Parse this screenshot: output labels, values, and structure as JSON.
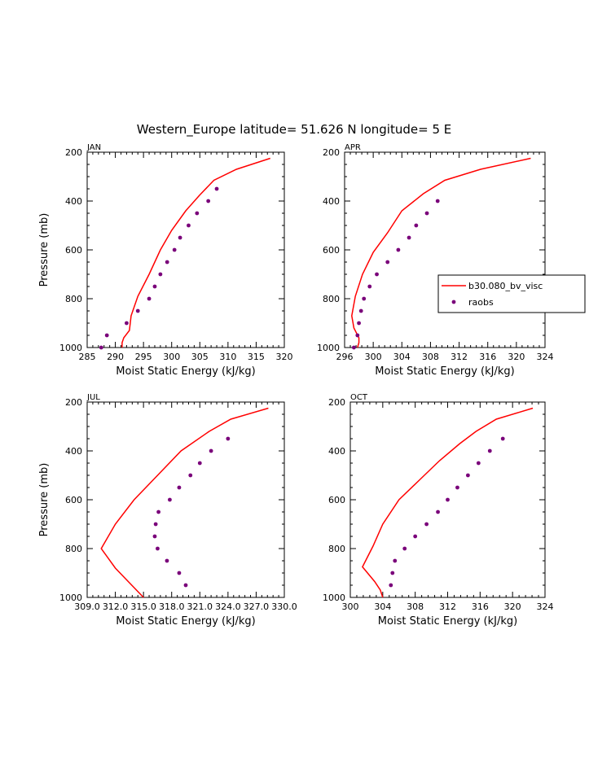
{
  "figure": {
    "title": "Western_Europe  latitude= 51.626 N longitude= 5 E"
  },
  "colors": {
    "model": "#ff0000",
    "obs": "#7a007a",
    "axis": "#000000"
  },
  "legend": {
    "entries": [
      "b30.080_bv_visc",
      "raobs"
    ]
  },
  "chart_data": [
    {
      "type": "line",
      "panel": "JAN",
      "xlabel": "Moist Static Energy (kJ/kg)",
      "ylabel": "Pressure (mb)",
      "xlim": [
        285,
        320
      ],
      "ylim": [
        1000,
        200
      ],
      "xticks": [
        285,
        290,
        295,
        300,
        305,
        310,
        315,
        320
      ],
      "xticklabels": [
        "285",
        "290",
        "295",
        "300",
        "305",
        "310",
        "315",
        "320"
      ],
      "yticks": [
        200,
        400,
        600,
        800,
        1000
      ],
      "yticklabels": [
        "200",
        "400",
        "600",
        "800",
        "1000"
      ],
      "series": [
        {
          "name": "b30.080_bv_visc",
          "style": "line",
          "x": [
            317.5,
            311.5,
            307.5,
            305,
            302.5,
            300,
            298,
            296,
            294,
            292.8,
            292.5,
            291.5,
            291.2,
            291.2
          ],
          "y": [
            225,
            270,
            315,
            375,
            440,
            520,
            600,
            700,
            790,
            870,
            930,
            960,
            980,
            1000
          ]
        },
        {
          "name": "raobs",
          "style": "marker",
          "x": [
            308,
            306.5,
            304.5,
            303,
            301.5,
            300.5,
            299.2,
            298,
            297,
            296,
            294,
            292,
            288.5,
            287.5
          ],
          "y": [
            350,
            400,
            450,
            500,
            550,
            600,
            650,
            700,
            750,
            800,
            850,
            900,
            950,
            1000
          ]
        }
      ]
    },
    {
      "type": "line",
      "panel": "APR",
      "xlabel": "Moist Static Energy (kJ/kg)",
      "ylabel": "",
      "xlim": [
        296,
        324
      ],
      "ylim": [
        1000,
        200
      ],
      "xticks": [
        296,
        300,
        304,
        308,
        312,
        316,
        320,
        324
      ],
      "xticklabels": [
        "296",
        "300",
        "304",
        "308",
        "312",
        "316",
        "320",
        "324"
      ],
      "yticks": [
        200,
        400,
        600,
        800,
        1000
      ],
      "yticklabels": [
        "200",
        "400",
        "600",
        "800",
        "1000"
      ],
      "series": [
        {
          "name": "b30.080_bv_visc",
          "style": "line",
          "x": [
            322,
            315,
            310,
            307,
            304,
            302,
            300,
            298.5,
            297.5,
            297,
            297.3,
            298,
            298,
            297.8
          ],
          "y": [
            225,
            270,
            315,
            370,
            440,
            530,
            610,
            700,
            790,
            870,
            920,
            960,
            980,
            1000
          ]
        },
        {
          "name": "raobs",
          "style": "marker",
          "x": [
            309,
            307.5,
            306,
            305,
            303.5,
            302,
            300.5,
            299.5,
            298.7,
            298.3,
            298,
            297.8,
            297.3
          ],
          "y": [
            400,
            450,
            500,
            550,
            600,
            650,
            700,
            750,
            800,
            850,
            900,
            950,
            1000
          ]
        }
      ]
    },
    {
      "type": "line",
      "panel": "JUL",
      "xlabel": "Moist Static Energy (kJ/kg)",
      "ylabel": "Pressure (mb)",
      "xlim": [
        309.0,
        330.0
      ],
      "ylim": [
        1000,
        200
      ],
      "xticks": [
        309.0,
        312.0,
        315.0,
        318.0,
        321.0,
        324.0,
        327.0,
        330.0
      ],
      "xticklabels": [
        "309.0",
        "312.0",
        "315.0",
        "318.0",
        "321.0",
        "324.0",
        "327.0",
        "330.0"
      ],
      "yticks": [
        200,
        400,
        600,
        800,
        1000
      ],
      "yticklabels": [
        "200",
        "400",
        "600",
        "800",
        "1000"
      ],
      "series": [
        {
          "name": "b30.080_bv_visc",
          "style": "line",
          "x": [
            328.3,
            324.3,
            322,
            319,
            316.5,
            314,
            312,
            310.5,
            312,
            313.5,
            314.5,
            315
          ],
          "y": [
            225,
            270,
            320,
            400,
            500,
            600,
            700,
            800,
            880,
            940,
            980,
            1000
          ]
        },
        {
          "name": "raobs",
          "style": "marker",
          "x": [
            324,
            322.2,
            321,
            320,
            318.8,
            317.8,
            316.6,
            316.3,
            316.2,
            316.5,
            317.5,
            318.8,
            319.5
          ],
          "y": [
            350,
            400,
            450,
            500,
            550,
            600,
            650,
            700,
            750,
            800,
            850,
            900,
            950
          ]
        }
      ]
    },
    {
      "type": "line",
      "panel": "OCT",
      "xlabel": "Moist Static Energy (kJ/kg)",
      "ylabel": "",
      "xlim": [
        300,
        324
      ],
      "ylim": [
        1000,
        200
      ],
      "xticks": [
        300,
        304,
        308,
        312,
        316,
        320,
        324
      ],
      "xticklabels": [
        "300",
        "304",
        "308",
        "312",
        "316",
        "320",
        "324"
      ],
      "yticks": [
        200,
        400,
        600,
        800,
        1000
      ],
      "yticklabels": [
        "200",
        "400",
        "600",
        "800",
        "1000"
      ],
      "series": [
        {
          "name": "b30.080_bv_visc",
          "style": "line",
          "x": [
            322.5,
            318,
            315.5,
            313.5,
            311,
            308.5,
            306,
            304,
            302.8,
            301.5,
            303,
            303.7,
            304
          ],
          "y": [
            225,
            270,
            320,
            370,
            440,
            520,
            600,
            700,
            790,
            875,
            935,
            970,
            1000
          ]
        },
        {
          "name": "raobs",
          "style": "marker",
          "x": [
            318.8,
            317.2,
            315.8,
            314.5,
            313.2,
            312,
            310.8,
            309.4,
            308,
            306.7,
            305.5,
            305.2,
            305
          ],
          "y": [
            350,
            400,
            450,
            500,
            550,
            600,
            650,
            700,
            750,
            800,
            850,
            900,
            950
          ]
        }
      ]
    }
  ]
}
